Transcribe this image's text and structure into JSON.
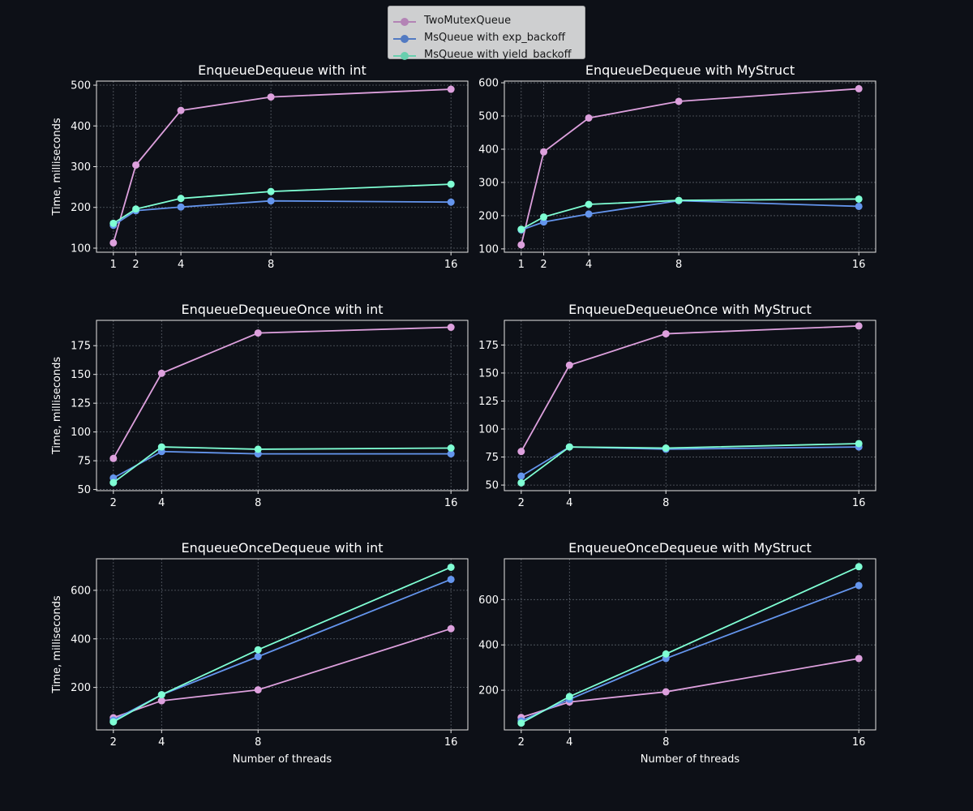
{
  "legend": {
    "placement": "top-center",
    "items": [
      {
        "label": "TwoMutexQueue",
        "color": "#dda0dd"
      },
      {
        "label": "MsQueue with exp_backoff",
        "color": "#6495ed"
      },
      {
        "label": "MsQueue with yield_backoff",
        "color": "#7fffd4"
      }
    ]
  },
  "chart_data": [
    {
      "type": "line",
      "title": "EnqueueDequeue with int",
      "xlabel": "",
      "ylabel": "Time, milliseconds",
      "x": [
        1,
        2,
        4,
        8,
        16
      ],
      "xlim": [
        0.25,
        16.75
      ],
      "ylim": [
        90,
        510
      ],
      "yticks": [
        100,
        200,
        300,
        400,
        500
      ],
      "grid": true,
      "series": [
        {
          "name": "TwoMutexQueue",
          "values": [
            113,
            304,
            438,
            471,
            490
          ]
        },
        {
          "name": "MsQueue with exp_backoff",
          "values": [
            156,
            192,
            201,
            216,
            213
          ]
        },
        {
          "name": "MsQueue with yield_backoff",
          "values": [
            161,
            196,
            222,
            239,
            257
          ]
        }
      ]
    },
    {
      "type": "line",
      "title": "EnqueueDequeue with MyStruct",
      "xlabel": "",
      "ylabel": "",
      "x": [
        1,
        2,
        4,
        8,
        16
      ],
      "xlim": [
        0.25,
        16.75
      ],
      "ylim": [
        90,
        605
      ],
      "yticks": [
        100,
        200,
        300,
        400,
        500,
        600
      ],
      "grid": true,
      "series": [
        {
          "name": "TwoMutexQueue",
          "values": [
            112,
            392,
            494,
            544,
            582
          ]
        },
        {
          "name": "MsQueue with exp_backoff",
          "values": [
            157,
            181,
            205,
            245,
            228
          ]
        },
        {
          "name": "MsQueue with yield_backoff",
          "values": [
            159,
            196,
            234,
            246,
            250
          ]
        }
      ]
    },
    {
      "type": "line",
      "title": "EnqueueDequeueOnce with int",
      "xlabel": "",
      "ylabel": "Time, milliseconds",
      "x": [
        2,
        4,
        8,
        16
      ],
      "xlim": [
        1.3,
        16.7
      ],
      "ylim": [
        49,
        197
      ],
      "yticks": [
        50,
        75,
        100,
        125,
        150,
        175
      ],
      "grid": true,
      "series": [
        {
          "name": "TwoMutexQueue",
          "values": [
            77,
            151,
            186,
            191
          ]
        },
        {
          "name": "MsQueue with exp_backoff",
          "values": [
            60,
            83,
            81,
            81
          ]
        },
        {
          "name": "MsQueue with yield_backoff",
          "values": [
            56,
            87,
            85,
            86
          ]
        }
      ]
    },
    {
      "type": "line",
      "title": "EnqueueDequeueOnce with MyStruct",
      "xlabel": "",
      "ylabel": "",
      "x": [
        2,
        4,
        8,
        16
      ],
      "xlim": [
        1.3,
        16.7
      ],
      "ylim": [
        45,
        197
      ],
      "yticks": [
        50,
        75,
        100,
        125,
        150,
        175
      ],
      "grid": true,
      "series": [
        {
          "name": "TwoMutexQueue",
          "values": [
            80,
            157,
            185,
            192
          ]
        },
        {
          "name": "MsQueue with exp_backoff",
          "values": [
            58,
            84,
            82,
            84
          ]
        },
        {
          "name": "MsQueue with yield_backoff",
          "values": [
            52,
            84,
            83,
            87
          ]
        }
      ]
    },
    {
      "type": "line",
      "title": "EnqueueOnceDequeue with int",
      "xlabel": "Number of threads",
      "ylabel": "Time, milliseconds",
      "x": [
        2,
        4,
        8,
        16
      ],
      "xlim": [
        1.3,
        16.7
      ],
      "ylim": [
        25,
        730
      ],
      "yticks": [
        200,
        400,
        600
      ],
      "grid": true,
      "series": [
        {
          "name": "TwoMutexQueue",
          "values": [
            75,
            145,
            190,
            442
          ]
        },
        {
          "name": "MsQueue with exp_backoff",
          "values": [
            65,
            170,
            327,
            645
          ]
        },
        {
          "name": "MsQueue with yield_backoff",
          "values": [
            58,
            170,
            355,
            695
          ]
        }
      ]
    },
    {
      "type": "line",
      "title": "EnqueueOnceDequeue with MyStruct",
      "xlabel": "Number of threads",
      "ylabel": "",
      "x": [
        2,
        4,
        8,
        16
      ],
      "xlim": [
        1.3,
        16.7
      ],
      "ylim": [
        25,
        780
      ],
      "yticks": [
        200,
        400,
        600
      ],
      "grid": true,
      "series": [
        {
          "name": "TwoMutexQueue",
          "values": [
            80,
            148,
            193,
            340
          ]
        },
        {
          "name": "MsQueue with exp_backoff",
          "values": [
            65,
            160,
            340,
            662
          ]
        },
        {
          "name": "MsQueue with yield_backoff",
          "values": [
            55,
            172,
            360,
            745
          ]
        }
      ]
    }
  ]
}
